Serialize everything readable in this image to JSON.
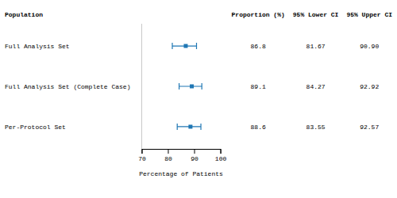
{
  "chart_data": {
    "type": "forest",
    "categories": [
      "Full Analysis Set",
      "Full Analysis Set (Complete Case)",
      "Per-Protocol Set"
    ],
    "values": [
      86.8,
      89.1,
      88.6
    ],
    "lower_ci": [
      81.67,
      84.27,
      83.55
    ],
    "upper_ci": [
      90.9,
      92.92,
      92.57
    ],
    "value_labels": [
      "86.8",
      "89.1",
      "88.6"
    ],
    "lower_labels": [
      "81.67",
      "84.27",
      "83.55"
    ],
    "upper_labels": [
      "90.90",
      "92.92",
      "92.57"
    ],
    "category_header": "Population",
    "value_header": "Proportion (%)",
    "lower_header": "95% Lower CI",
    "upper_header": "95% Upper CI",
    "x_label": "Percentage of Patients",
    "xlim": [
      70,
      100
    ],
    "xticks": [
      70,
      80,
      90,
      100
    ],
    "reference_line": 70
  }
}
